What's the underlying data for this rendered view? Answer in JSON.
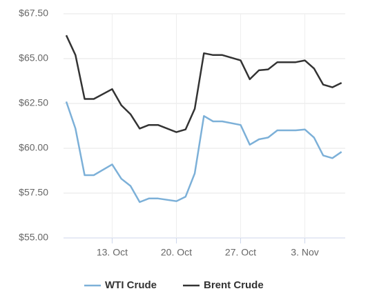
{
  "chart_data": {
    "type": "line",
    "x": [
      8,
      9,
      10,
      11,
      13,
      14,
      15,
      16,
      17,
      18,
      20,
      21,
      22,
      23,
      24,
      25,
      27,
      28,
      29,
      30,
      31,
      32,
      33,
      34,
      35,
      36,
      37,
      38
    ],
    "series": [
      {
        "name": "WTI Crude",
        "color": "#7cb0d8",
        "values": [
          62.6,
          61.1,
          58.5,
          58.5,
          59.1,
          58.3,
          57.9,
          57.0,
          57.2,
          57.2,
          57.05,
          57.3,
          58.6,
          61.8,
          61.5,
          61.5,
          61.3,
          60.2,
          60.5,
          60.6,
          61.0,
          61.0,
          61.0,
          61.05,
          60.6,
          59.6,
          59.45,
          59.8
        ]
      },
      {
        "name": "Brent Crude",
        "color": "#333333",
        "values": [
          66.3,
          65.2,
          62.75,
          62.75,
          63.3,
          62.4,
          61.9,
          61.1,
          61.3,
          61.3,
          60.9,
          61.05,
          62.2,
          65.3,
          65.2,
          65.2,
          64.9,
          63.85,
          64.35,
          64.4,
          64.8,
          64.8,
          64.8,
          64.9,
          64.45,
          63.55,
          63.4,
          63.65
        ]
      }
    ],
    "xlim": [
      7.7,
      38.4
    ],
    "xticks": [
      {
        "value": 13,
        "label": "13. Oct"
      },
      {
        "value": 20,
        "label": "20. Oct"
      },
      {
        "value": 27,
        "label": "27. Oct"
      },
      {
        "value": 34,
        "label": "3. Nov"
      }
    ],
    "ylim": [
      55,
      67.5
    ],
    "yticks": [
      {
        "value": 55,
        "label": "$55.00"
      },
      {
        "value": 57.5,
        "label": "$57.50"
      },
      {
        "value": 60,
        "label": "$60.00"
      },
      {
        "value": 62.5,
        "label": "$62.50"
      },
      {
        "value": 65,
        "label": "$65.00"
      },
      {
        "value": 67.5,
        "label": "$67.50"
      }
    ],
    "grid": true,
    "legend": "bottom"
  }
}
